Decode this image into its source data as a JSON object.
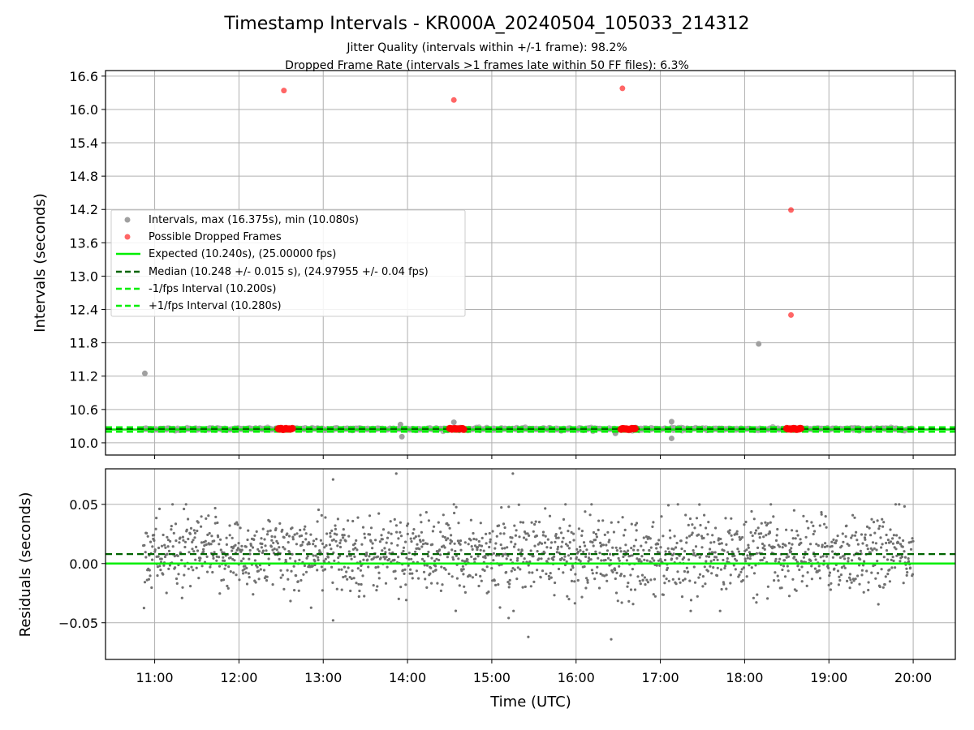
{
  "chart_data": [
    {
      "type": "scatter",
      "title": "Timestamp Intervals - KR000A_20240504_105033_214312",
      "subtitle_1": "Jitter Quality (intervals within +/-1 frame): 98.2%",
      "subtitle_2": "Dropped Frame Rate (intervals >1 frames late within 50 FF files): 6.3%",
      "ylabel": "Intervals (seconds)",
      "xlim": [
        "10:25",
        "20:30"
      ],
      "ylim": [
        9.78,
        16.7
      ],
      "yticks": [
        10.0,
        10.6,
        11.2,
        11.8,
        12.4,
        13.0,
        13.6,
        14.2,
        14.8,
        15.4,
        16.0,
        16.6
      ],
      "ytick_labels": [
        "10.0",
        "10.6",
        "11.2",
        "11.8",
        "12.4",
        "13.0",
        "13.6",
        "14.2",
        "14.8",
        "15.4",
        "16.0",
        "16.6"
      ],
      "grid": true,
      "legend_position": "center-left",
      "legend": {
        "intervals": "Intervals, max (16.375s), min (10.080s)",
        "dropped": "Possible Dropped Frames",
        "expected": "Expected (10.240s), (25.00000 fps)",
        "median": "Median (10.248 +/- 0.015 s), (24.97955 +/- 0.04 fps)",
        "minus": "-1/fps Interval (10.200s)",
        "plus": "+1/fps Interval (10.280s)"
      },
      "reference_lines": {
        "expected": 10.24,
        "median": 10.248,
        "minus_1fps": 10.2,
        "plus_1fps": 10.28
      },
      "series": [
        {
          "name": "Intervals, max (16.375s), min (10.080s)",
          "color": "#a0a0a0",
          "band": {
            "x_start": "10:52",
            "x_end": "20:00",
            "center": 10.248,
            "spread": 0.03
          },
          "outliers": [
            {
              "x": "10:53",
              "y": 11.25
            },
            {
              "x": "13:55",
              "y": 10.33
            },
            {
              "x": "13:56",
              "y": 10.11
            },
            {
              "x": "14:33",
              "y": 10.37
            },
            {
              "x": "16:28",
              "y": 10.17
            },
            {
              "x": "17:08",
              "y": 10.38
            },
            {
              "x": "17:08",
              "y": 10.08
            },
            {
              "x": "18:10",
              "y": 11.78
            }
          ]
        },
        {
          "name": "Possible Dropped Frames",
          "color": "#ff0000",
          "points": [
            {
              "x": "12:32",
              "y": 16.34
            },
            {
              "x": "14:33",
              "y": 16.17
            },
            {
              "x": "16:33",
              "y": 16.38
            },
            {
              "x": "18:33",
              "y": 14.19
            },
            {
              "x": "18:33",
              "y": 12.3
            }
          ],
          "clusters": [
            {
              "x_start": "12:28",
              "x_end": "12:38",
              "y": 10.25
            },
            {
              "x_start": "14:30",
              "x_end": "14:40",
              "y": 10.25
            },
            {
              "x_start": "16:32",
              "x_end": "16:42",
              "y": 10.25
            },
            {
              "x_start": "18:30",
              "x_end": "18:40",
              "y": 10.25
            }
          ]
        }
      ],
      "colors": {
        "expected": "#00ee00",
        "median": "#006400",
        "dropped": "#ff0000",
        "intervals": "#a0a0a0",
        "grid": "#b0b0b0"
      }
    },
    {
      "type": "scatter",
      "ylabel": "Residuals (seconds)",
      "xlabel": "Time (UTC)",
      "xlim": [
        "10:25",
        "20:30"
      ],
      "xticks": [
        "11:00",
        "12:00",
        "13:00",
        "14:00",
        "15:00",
        "16:00",
        "17:00",
        "18:00",
        "19:00",
        "20:00"
      ],
      "ylim": [
        -0.081,
        0.08
      ],
      "yticks": [
        -0.05,
        0.0,
        0.05
      ],
      "ytick_labels": [
        "−0.05",
        "0.00",
        "0.05"
      ],
      "grid": true,
      "reference_lines": {
        "zero": 0.0,
        "median_offset": 0.008
      },
      "series": [
        {
          "name": "",
          "color": "#707070",
          "distribution": {
            "x_start": "10:52",
            "x_end": "20:00",
            "mean": 0.008,
            "std": 0.016
          },
          "outliers": [
            {
              "x": "13:07",
              "y": 0.071
            },
            {
              "x": "13:52",
              "y": 0.076
            },
            {
              "x": "15:15",
              "y": 0.076
            },
            {
              "x": "13:07",
              "y": -0.048
            },
            {
              "x": "15:12",
              "y": -0.046
            },
            {
              "x": "15:26",
              "y": -0.062
            },
            {
              "x": "16:25",
              "y": -0.064
            }
          ]
        }
      ],
      "colors": {
        "zero": "#00ee00",
        "median": "#006400",
        "points": "#707070"
      }
    }
  ]
}
